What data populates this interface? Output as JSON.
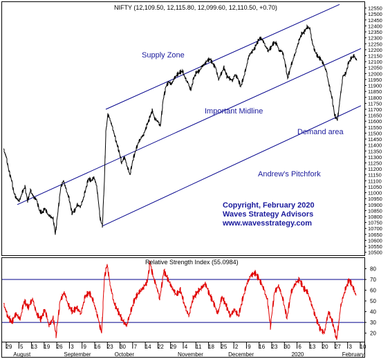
{
  "chart_data": {
    "type": "line",
    "title": "NIFTY (12,109.50, 12,115.80, 12,099.60, 12,110.50, +0.70)",
    "price_axis": {
      "ticks": [
        10500,
        10550,
        10600,
        10650,
        10700,
        10750,
        10800,
        10850,
        10900,
        10950,
        11000,
        11050,
        11100,
        11150,
        11200,
        11250,
        11300,
        11350,
        11400,
        11450,
        11500,
        11550,
        11600,
        11650,
        11700,
        11750,
        11800,
        11850,
        11900,
        11950,
        12000,
        12050,
        12100,
        12150,
        12200,
        12250,
        12300,
        12350,
        12400,
        12450,
        12500,
        12550
      ],
      "ylim": [
        10475,
        12600
      ]
    },
    "rsi_axis": {
      "label": "Relative Strength Index (55.0984)",
      "ticks": [
        20,
        30,
        40,
        50,
        60,
        70,
        80
      ],
      "ylim": [
        12,
        90
      ],
      "levels": [
        70,
        30
      ]
    },
    "x_axis": {
      "day_labels": [
        "29",
        "5",
        "13",
        "19",
        "26",
        "3",
        "9",
        "16",
        "23",
        "30",
        "7",
        "14",
        "22",
        "29",
        "4",
        "11",
        "18",
        "25",
        "2",
        "9",
        "16",
        "23",
        "30",
        "6",
        "13",
        "20",
        "27",
        "3",
        "10"
      ],
      "month_labels": [
        "August",
        "September",
        "October",
        "November",
        "December",
        "2020",
        "February"
      ]
    },
    "price_series": [
      [
        0,
        11370
      ],
      [
        4,
        11300
      ],
      [
        8,
        11180
      ],
      [
        12,
        11100
      ],
      [
        15,
        11000
      ],
      [
        19,
        10950
      ],
      [
        23,
        10930
      ],
      [
        27,
        11000
      ],
      [
        31,
        11050
      ],
      [
        35,
        10930
      ],
      [
        39,
        11020
      ],
      [
        44,
        10960
      ],
      [
        48,
        10940
      ],
      [
        52,
        10850
      ],
      [
        56,
        10830
      ],
      [
        60,
        10870
      ],
      [
        64,
        10820
      ],
      [
        68,
        10800
      ],
      [
        72,
        10780
      ],
      [
        75,
        10650
      ],
      [
        79,
        10850
      ],
      [
        83,
        11050
      ],
      [
        87,
        11100
      ],
      [
        91,
        11020
      ],
      [
        95,
        10950
      ],
      [
        99,
        10830
      ],
      [
        103,
        10850
      ],
      [
        107,
        10900
      ],
      [
        111,
        10880
      ],
      [
        115,
        10940
      ],
      [
        119,
        11030
      ],
      [
        123,
        11120
      ],
      [
        127,
        11100
      ],
      [
        131,
        11130
      ],
      [
        135,
        11050
      ],
      [
        140,
        10780
      ],
      [
        143,
        10720
      ],
      [
        146,
        11100
      ],
      [
        148,
        11500
      ],
      [
        151,
        11660
      ],
      [
        155,
        11600
      ],
      [
        159,
        11520
      ],
      [
        163,
        11430
      ],
      [
        167,
        11350
      ],
      [
        171,
        11250
      ],
      [
        175,
        11300
      ],
      [
        179,
        11220
      ],
      [
        183,
        11150
      ],
      [
        187,
        11270
      ],
      [
        191,
        11350
      ],
      [
        195,
        11420
      ],
      [
        199,
        11460
      ],
      [
        203,
        11490
      ],
      [
        207,
        11560
      ],
      [
        211,
        11620
      ],
      [
        215,
        11690
      ],
      [
        219,
        11620
      ],
      [
        223,
        11600
      ],
      [
        227,
        11560
      ],
      [
        231,
        11780
      ],
      [
        235,
        11890
      ],
      [
        239,
        11930
      ],
      [
        243,
        11910
      ],
      [
        247,
        11960
      ],
      [
        251,
        11990
      ],
      [
        255,
        12010
      ],
      [
        259,
        12020
      ],
      [
        263,
        11960
      ],
      [
        267,
        11920
      ],
      [
        271,
        11860
      ],
      [
        275,
        11960
      ],
      [
        279,
        12010
      ],
      [
        283,
        12020
      ],
      [
        287,
        12060
      ],
      [
        291,
        12080
      ],
      [
        295,
        12110
      ],
      [
        299,
        12120
      ],
      [
        303,
        12080
      ],
      [
        307,
        12050
      ],
      [
        311,
        11950
      ],
      [
        315,
        12000
      ],
      [
        319,
        12050
      ],
      [
        323,
        11980
      ],
      [
        327,
        11960
      ],
      [
        331,
        11940
      ],
      [
        335,
        11990
      ],
      [
        339,
        11960
      ],
      [
        343,
        11890
      ],
      [
        347,
        11960
      ],
      [
        351,
        12050
      ],
      [
        355,
        12150
      ],
      [
        359,
        12180
      ],
      [
        363,
        12210
      ],
      [
        367,
        12260
      ],
      [
        371,
        12300
      ],
      [
        375,
        12280
      ],
      [
        379,
        12230
      ],
      [
        383,
        12190
      ],
      [
        387,
        12220
      ],
      [
        391,
        12260
      ],
      [
        395,
        12250
      ],
      [
        399,
        12190
      ],
      [
        403,
        12190
      ],
      [
        407,
        12100
      ],
      [
        411,
        11960
      ],
      [
        415,
        12050
      ],
      [
        419,
        12120
      ],
      [
        423,
        12190
      ],
      [
        427,
        12270
      ],
      [
        431,
        12330
      ],
      [
        435,
        12350
      ],
      [
        439,
        12390
      ],
      [
        443,
        12380
      ],
      [
        447,
        12250
      ],
      [
        451,
        12180
      ],
      [
        455,
        12140
      ],
      [
        459,
        12120
      ],
      [
        463,
        12080
      ],
      [
        467,
        12020
      ],
      [
        471,
        11900
      ],
      [
        475,
        11800
      ],
      [
        479,
        11650
      ],
      [
        483,
        11610
      ],
      [
        487,
        11800
      ],
      [
        491,
        11980
      ],
      [
        495,
        12000
      ],
      [
        499,
        12090
      ],
      [
        503,
        12130
      ],
      [
        507,
        12150
      ],
      [
        511,
        12110
      ]
    ],
    "rsi_series": [
      [
        0,
        48
      ],
      [
        6,
        36
      ],
      [
        12,
        30
      ],
      [
        18,
        38
      ],
      [
        24,
        33
      ],
      [
        30,
        50
      ],
      [
        36,
        44
      ],
      [
        42,
        52
      ],
      [
        48,
        38
      ],
      [
        54,
        33
      ],
      [
        60,
        42
      ],
      [
        66,
        27
      ],
      [
        72,
        34
      ],
      [
        76,
        18
      ],
      [
        82,
        50
      ],
      [
        88,
        58
      ],
      [
        94,
        46
      ],
      [
        100,
        40
      ],
      [
        106,
        44
      ],
      [
        112,
        38
      ],
      [
        118,
        54
      ],
      [
        124,
        58
      ],
      [
        130,
        50
      ],
      [
        136,
        36
      ],
      [
        142,
        20
      ],
      [
        146,
        72
      ],
      [
        150,
        84
      ],
      [
        154,
        66
      ],
      [
        160,
        48
      ],
      [
        166,
        40
      ],
      [
        172,
        32
      ],
      [
        178,
        27
      ],
      [
        184,
        40
      ],
      [
        190,
        52
      ],
      [
        196,
        58
      ],
      [
        202,
        62
      ],
      [
        208,
        68
      ],
      [
        212,
        86
      ],
      [
        216,
        74
      ],
      [
        222,
        62
      ],
      [
        226,
        52
      ],
      [
        232,
        78
      ],
      [
        238,
        70
      ],
      [
        244,
        62
      ],
      [
        250,
        56
      ],
      [
        256,
        60
      ],
      [
        262,
        46
      ],
      [
        268,
        36
      ],
      [
        274,
        52
      ],
      [
        280,
        58
      ],
      [
        286,
        62
      ],
      [
        292,
        66
      ],
      [
        298,
        56
      ],
      [
        304,
        48
      ],
      [
        310,
        38
      ],
      [
        316,
        54
      ],
      [
        322,
        46
      ],
      [
        328,
        36
      ],
      [
        334,
        42
      ],
      [
        340,
        36
      ],
      [
        346,
        52
      ],
      [
        352,
        66
      ],
      [
        358,
        74
      ],
      [
        364,
        76
      ],
      [
        370,
        70
      ],
      [
        376,
        62
      ],
      [
        382,
        50
      ],
      [
        386,
        26
      ],
      [
        392,
        58
      ],
      [
        398,
        64
      ],
      [
        404,
        52
      ],
      [
        410,
        34
      ],
      [
        416,
        58
      ],
      [
        422,
        66
      ],
      [
        428,
        70
      ],
      [
        434,
        62
      ],
      [
        440,
        58
      ],
      [
        446,
        46
      ],
      [
        452,
        34
      ],
      [
        458,
        24
      ],
      [
        464,
        20
      ],
      [
        470,
        40
      ],
      [
        476,
        30
      ],
      [
        482,
        14
      ],
      [
        488,
        46
      ],
      [
        494,
        60
      ],
      [
        500,
        70
      ],
      [
        506,
        62
      ],
      [
        510,
        55
      ]
    ],
    "channel": {
      "upper": [
        [
          148,
          11700
        ],
        [
          486,
          12580
        ]
      ],
      "mid": [
        [
          20,
          10900
        ],
        [
          517,
          12210
        ]
      ],
      "lower": [
        [
          143,
          10720
        ],
        [
          517,
          11730
        ]
      ]
    },
    "annotations": {
      "supply_zone": "Supply Zone",
      "important_midline": "Important Midline",
      "demand_area": "Demand area",
      "andrews_pitchfork": "Andrew's Pitchfork",
      "copyright": "Copyright, February 2020",
      "advisors": "Waves Strategy Advisors",
      "website": "www.wavesstrategy.com"
    },
    "colors": {
      "price": "#000000",
      "channel": "#00008b",
      "rsi": "#e00000",
      "rsi_levels": "#00008b",
      "annotation": "#1a1a9c",
      "grid": "#b8b8b8"
    }
  }
}
